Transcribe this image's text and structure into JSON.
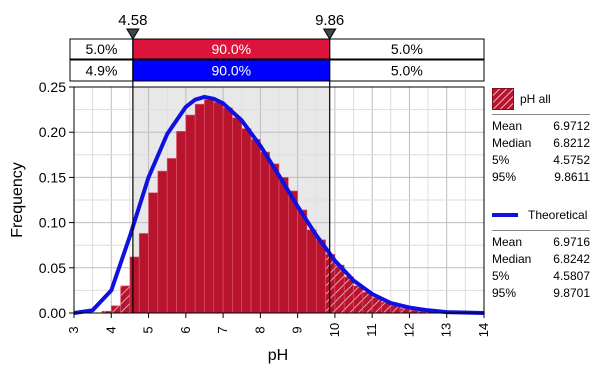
{
  "chart_data": {
    "type": "bar",
    "title": "",
    "xlabel": "pH",
    "ylabel": "Frequency",
    "xlim": [
      3,
      14
    ],
    "ylim": [
      0,
      0.25
    ],
    "xticks": [
      "3",
      "4",
      "5",
      "6",
      "7",
      "8",
      "9",
      "10",
      "11",
      "12",
      "13",
      "14"
    ],
    "yticks": [
      "0.00",
      "0.05",
      "0.10",
      "0.15",
      "0.20",
      "0.25"
    ],
    "bin_width": 0.25,
    "bins_x": [
      3.75,
      4.0,
      4.25,
      4.5,
      4.75,
      5.0,
      5.25,
      5.5,
      5.75,
      6.0,
      6.25,
      6.5,
      6.75,
      7.0,
      7.25,
      7.5,
      7.75,
      8.0,
      8.25,
      8.5,
      8.75,
      9.0,
      9.25,
      9.5,
      9.75,
      10.0,
      10.25,
      10.5,
      10.75,
      11.0,
      11.25,
      11.5,
      11.75,
      12.0,
      12.25,
      12.5,
      12.75
    ],
    "series": [
      {
        "name": "pH all",
        "values": [
          0.002,
          0.008,
          0.03,
          0.062,
          0.088,
          0.133,
          0.157,
          0.171,
          0.201,
          0.219,
          0.231,
          0.236,
          0.233,
          0.227,
          0.216,
          0.204,
          0.192,
          0.178,
          0.165,
          0.15,
          0.135,
          0.114,
          0.092,
          0.081,
          0.065,
          0.053,
          0.04,
          0.03,
          0.023,
          0.017,
          0.012,
          0.008,
          0.005,
          0.003,
          0.002,
          0.001,
          0.001
        ],
        "stats": [
          {
            "label": "Mean",
            "value": "6.9712"
          },
          {
            "label": "Median",
            "value": "6.8212"
          },
          {
            "label": "5%",
            "value": "4.5752"
          },
          {
            "label": "95%",
            "value": "9.8611"
          }
        ]
      },
      {
        "name": "Theoretical",
        "x": [
          3.0,
          3.5,
          4.0,
          4.5,
          5.0,
          5.5,
          6.0,
          6.25,
          6.5,
          6.75,
          7.0,
          7.5,
          8.0,
          8.5,
          9.0,
          9.5,
          10.0,
          10.5,
          11.0,
          11.5,
          12.0,
          12.5,
          13.0,
          14.0
        ],
        "y": [
          0.0,
          0.003,
          0.025,
          0.085,
          0.15,
          0.198,
          0.228,
          0.236,
          0.239,
          0.237,
          0.232,
          0.213,
          0.185,
          0.152,
          0.118,
          0.086,
          0.058,
          0.036,
          0.021,
          0.011,
          0.006,
          0.003,
          0.001,
          0.0
        ],
        "stats": [
          {
            "label": "Mean",
            "value": "6.9716"
          },
          {
            "label": "Median",
            "value": "6.8242"
          },
          {
            "label": "5%",
            "value": "4.5807"
          },
          {
            "label": "95%",
            "value": "9.8701"
          }
        ]
      }
    ],
    "markers": {
      "left": {
        "value": 4.58,
        "label": "4.58"
      },
      "right": {
        "value": 9.86,
        "label": "9.86"
      }
    },
    "probability_bands": [
      {
        "left": "5.0%",
        "middle": "90.0%",
        "right": "5.0%",
        "color": "#dc143c"
      },
      {
        "left": "4.9%",
        "middle": "90.0%",
        "right": "5.0%",
        "color": "#0000ff"
      }
    ],
    "grid": true,
    "legend_position": "right"
  },
  "colors": {
    "bar_fill": "#b8142e",
    "bar_edge": "#e05a72",
    "curve": "#1010e0",
    "shade": "#e8e8e8",
    "grid": "#bdbdbd"
  }
}
